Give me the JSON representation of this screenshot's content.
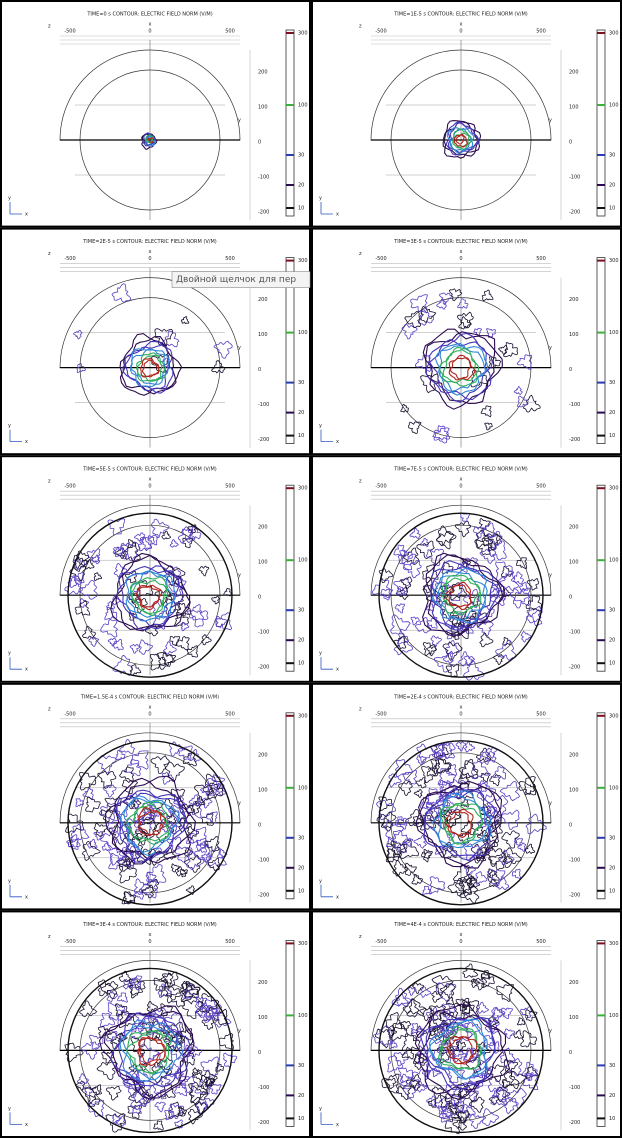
{
  "panels": [
    {
      "title": "TIME=0 s  CONTOUR: ELECTRIC FIELD NORM (V/M)"
    },
    {
      "title": "TIME=1E-5 s  CONTOUR: ELECTRIC FIELD NORM (V/M)"
    },
    {
      "title": "TIME=2E-5 s  CONTOUR: ELECTRIC FIELD NORM (V/M)"
    },
    {
      "title": "TIME=3E-5 s  CONTOUR: ELECTRIC FIELD NORM (V/M)"
    },
    {
      "title": "TIME=5E-5 s  CONTOUR: ELECTRIC FIELD NORM (V/M)"
    },
    {
      "title": "TIME=7E-5 s  CONTOUR: ELECTRIC FIELD NORM (V/M)"
    },
    {
      "title": "TIME=1.5E-4 s  CONTOUR: ELECTRIC FIELD NORM (V/M)"
    },
    {
      "title": "TIME=2E-4 s  CONTOUR: ELECTRIC FIELD NORM (V/M)"
    },
    {
      "title": "TIME=3E-4 s  CONTOUR: ELECTRIC FIELD NORM (V/M)"
    },
    {
      "title": "TIME=4E-4 s  CONTOUR: ELECTRIC FIELD NORM (V/M)"
    }
  ],
  "axes": {
    "x_ticks": [
      "-500",
      "0",
      "500"
    ],
    "y_ticks": [
      "200",
      "100",
      "0",
      "-100",
      "-200"
    ],
    "x_label": "x",
    "y_label": "y",
    "z_label": "z",
    "colorbar_labels": [
      "300",
      "100",
      "30",
      "20",
      "10"
    ]
  },
  "tooltip": "Двойной щелчок для пер"
}
